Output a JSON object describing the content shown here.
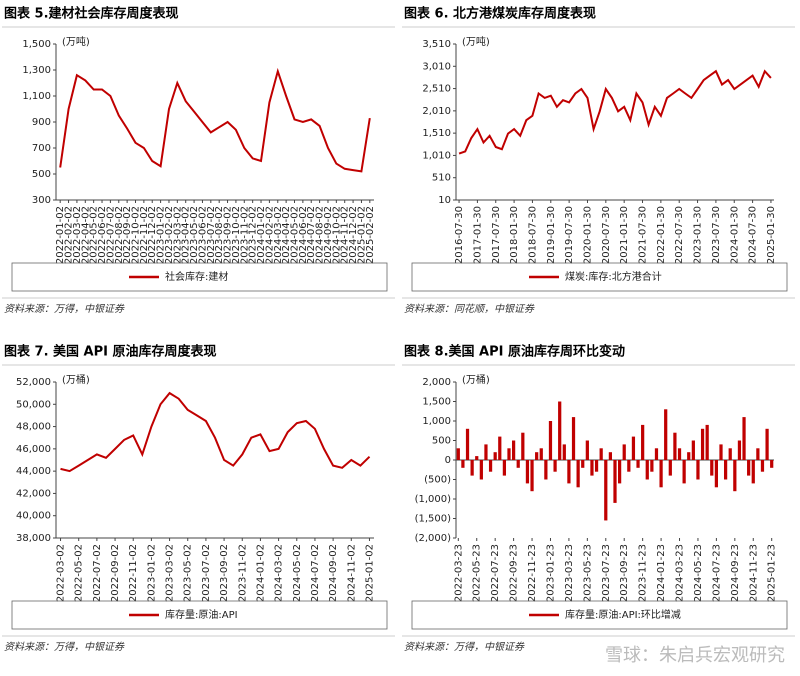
{
  "chart_data": [
    {
      "type": "line",
      "title": "图表 5.建材社会库存周度表现",
      "unit": "(万吨)",
      "source": "资料来源：万得，中银证券",
      "categories": [
        "2022-01-02",
        "2022-02-02",
        "2022-03-02",
        "2022-04-02",
        "2022-05-02",
        "2022-06-02",
        "2022-07-02",
        "2022-08-02",
        "2022-09-02",
        "2022-10-02",
        "2022-11-02",
        "2022-12-02",
        "2023-01-02",
        "2023-02-02",
        "2023-03-02",
        "2023-04-02",
        "2023-05-02",
        "2023-06-02",
        "2023-07-02",
        "2023-08-02",
        "2023-09-02",
        "2023-10-02",
        "2023-11-02",
        "2023-12-02",
        "2024-01-02",
        "2024-02-02",
        "2024-03-02",
        "2024-04-02",
        "2024-05-02",
        "2024-06-02",
        "2024-07-02",
        "2024-08-02",
        "2024-09-02",
        "2024-10-02",
        "2024-11-02",
        "2024-12-02",
        "2025-01-02",
        "2025-02-02"
      ],
      "series": [
        {
          "name": "社会库存:建材",
          "color": "#c00000",
          "values": [
            550,
            1000,
            1260,
            1220,
            1150,
            1150,
            1100,
            950,
            850,
            740,
            700,
            600,
            560,
            1000,
            1200,
            1060,
            980,
            900,
            820,
            860,
            900,
            840,
            700,
            620,
            600,
            1050,
            1290,
            1100,
            920,
            900,
            920,
            870,
            700,
            580,
            540,
            530,
            520,
            930
          ]
        }
      ],
      "ylim": [
        300,
        1500
      ],
      "yticks": [
        300,
        500,
        700,
        900,
        {
          "value": 1100,
          "label": "1,100"
        },
        {
          "value": 1300,
          "label": "1,300"
        },
        {
          "value": 1500,
          "label": "1,500"
        }
      ]
    },
    {
      "type": "line",
      "title": "图表 6. 北方港煤炭库存周度表现",
      "unit": "(万吨)",
      "source": "资料来源：同花顺，中银证券",
      "categories": [
        "2016-07-30",
        null,
        null,
        "2017-01-30",
        null,
        null,
        "2017-07-30",
        null,
        null,
        "2018-01-30",
        null,
        null,
        "2018-07-30",
        null,
        null,
        "2019-01-30",
        null,
        null,
        "2019-07-30",
        null,
        null,
        "2020-01-30",
        null,
        null,
        "2020-07-30",
        null,
        null,
        "2021-01-30",
        null,
        null,
        "2021-07-30",
        null,
        null,
        "2022-01-30",
        null,
        null,
        "2022-07-30",
        null,
        null,
        "2023-01-30",
        null,
        null,
        "2023-07-30",
        null,
        null,
        "2024-01-30",
        null,
        null,
        "2024-07-30",
        null,
        null,
        "2025-01-30"
      ],
      "series": [
        {
          "name": "煤炭:库存:北方港合计",
          "color": "#c00000",
          "values": [
            1050,
            1100,
            1400,
            1600,
            1300,
            1450,
            1200,
            1150,
            1500,
            1600,
            1450,
            1800,
            1900,
            2400,
            2300,
            2350,
            2100,
            2250,
            2200,
            2400,
            2500,
            2300,
            1600,
            2000,
            2500,
            2300,
            2000,
            2100,
            1800,
            2400,
            2200,
            1700,
            2100,
            1900,
            2300,
            2400,
            2500,
            2400,
            2300,
            2500,
            2700,
            2800,
            2900,
            2600,
            2700,
            2500,
            2600,
            2700,
            2800,
            2550,
            2900,
            2750
          ]
        }
      ],
      "ylim": [
        10,
        3510
      ],
      "yticks": [
        10,
        510,
        {
          "value": 1010,
          "label": "1,010"
        },
        {
          "value": 1510,
          "label": "1,510"
        },
        {
          "value": 2010,
          "label": "2,010"
        },
        {
          "value": 2510,
          "label": "2,510"
        },
        {
          "value": 3010,
          "label": "3,010"
        },
        {
          "value": 3510,
          "label": "3,510"
        }
      ]
    },
    {
      "type": "line",
      "title": "图表 7. 美国 API 原油库存周度表现",
      "unit": "(万桶)",
      "source": "资料来源：万得，中银证券",
      "categories": [
        "2022-03-02",
        null,
        "2022-05-02",
        null,
        "2022-07-02",
        null,
        "2022-09-02",
        null,
        "2022-11-02",
        null,
        "2023-01-02",
        null,
        "2023-03-02",
        null,
        "2023-05-02",
        null,
        "2023-07-02",
        null,
        "2023-09-02",
        null,
        "2023-11-02",
        null,
        "2024-01-02",
        null,
        "2024-03-02",
        null,
        "2024-05-02",
        null,
        "2024-07-02",
        null,
        "2024-09-02",
        null,
        "2024-11-02",
        null,
        "2025-01-02"
      ],
      "series": [
        {
          "name": "库存量:原油:API",
          "color": "#c00000",
          "values": [
            44200,
            44000,
            44500,
            45000,
            45500,
            45200,
            46000,
            46800,
            47200,
            45500,
            48000,
            50000,
            51000,
            50500,
            49500,
            49000,
            48500,
            47000,
            45000,
            44500,
            45500,
            47000,
            47300,
            45800,
            46000,
            47500,
            48300,
            48500,
            47800,
            46000,
            44500,
            44300,
            45000,
            44500,
            45300
          ]
        }
      ],
      "ylim": [
        38000,
        52000
      ],
      "yticks": [
        {
          "value": 38000,
          "label": "38,000"
        },
        {
          "value": 40000,
          "label": "40,000"
        },
        {
          "value": 42000,
          "label": "42,000"
        },
        {
          "value": 44000,
          "label": "44,000"
        },
        {
          "value": 46000,
          "label": "46,000"
        },
        {
          "value": 48000,
          "label": "48,000"
        },
        {
          "value": 50000,
          "label": "50,000"
        },
        {
          "value": 52000,
          "label": "52,000"
        }
      ]
    },
    {
      "type": "bar",
      "title": "图表 8.美国 API 原油库存周环比变动",
      "unit": "(万桶)",
      "source": "资料来源：万得，中银证券",
      "categories": [
        "2022-03-23",
        null,
        null,
        null,
        "2022-05-23",
        null,
        null,
        null,
        "2022-07-23",
        null,
        null,
        null,
        "2022-09-23",
        null,
        null,
        null,
        "2022-11-23",
        null,
        null,
        null,
        "2023-01-23",
        null,
        null,
        null,
        "2023-03-23",
        null,
        null,
        null,
        "2023-05-23",
        null,
        null,
        null,
        "2023-07-23",
        null,
        null,
        null,
        "2023-09-23",
        null,
        null,
        null,
        "2023-11-23",
        null,
        null,
        null,
        "2024-01-23",
        null,
        null,
        null,
        "2024-03-23",
        null,
        null,
        null,
        "2024-05-23",
        null,
        null,
        null,
        "2024-07-23",
        null,
        null,
        null,
        "2024-09-23",
        null,
        null,
        null,
        "2024-11-23",
        null,
        null,
        null,
        "2025-01-23"
      ],
      "series": [
        {
          "name": "库存量:原油:API:环比增减",
          "color": "#c00000",
          "values": [
            300,
            -200,
            800,
            -400,
            100,
            -500,
            400,
            -300,
            200,
            600,
            -400,
            300,
            500,
            -200,
            700,
            -600,
            -800,
            200,
            300,
            -500,
            1000,
            -300,
            1500,
            400,
            -600,
            1100,
            -700,
            -200,
            500,
            -400,
            -300,
            300,
            -1550,
            200,
            -1100,
            -600,
            400,
            -300,
            600,
            -200,
            900,
            -500,
            -300,
            300,
            -700,
            1300,
            -400,
            700,
            300,
            -600,
            200,
            500,
            -500,
            800,
            900,
            -400,
            -700,
            400,
            -500,
            300,
            -800,
            500,
            1100,
            -400,
            -600,
            300,
            -300,
            800,
            -200
          ]
        }
      ],
      "ylim": [
        -2000,
        2000
      ],
      "yticks": [
        {
          "value": -2000,
          "label": "(2,000)"
        },
        {
          "value": -1500,
          "label": "(1,500)"
        },
        {
          "value": -1000,
          "label": "(1,000)"
        },
        {
          "value": -500,
          "label": "(500)"
        },
        0,
        500,
        {
          "value": 1000,
          "label": "1,000"
        },
        {
          "value": 1500,
          "label": "1,500"
        },
        {
          "value": 2000,
          "label": "2,000"
        }
      ]
    }
  ],
  "watermark": "雪球：朱启兵宏观研究"
}
